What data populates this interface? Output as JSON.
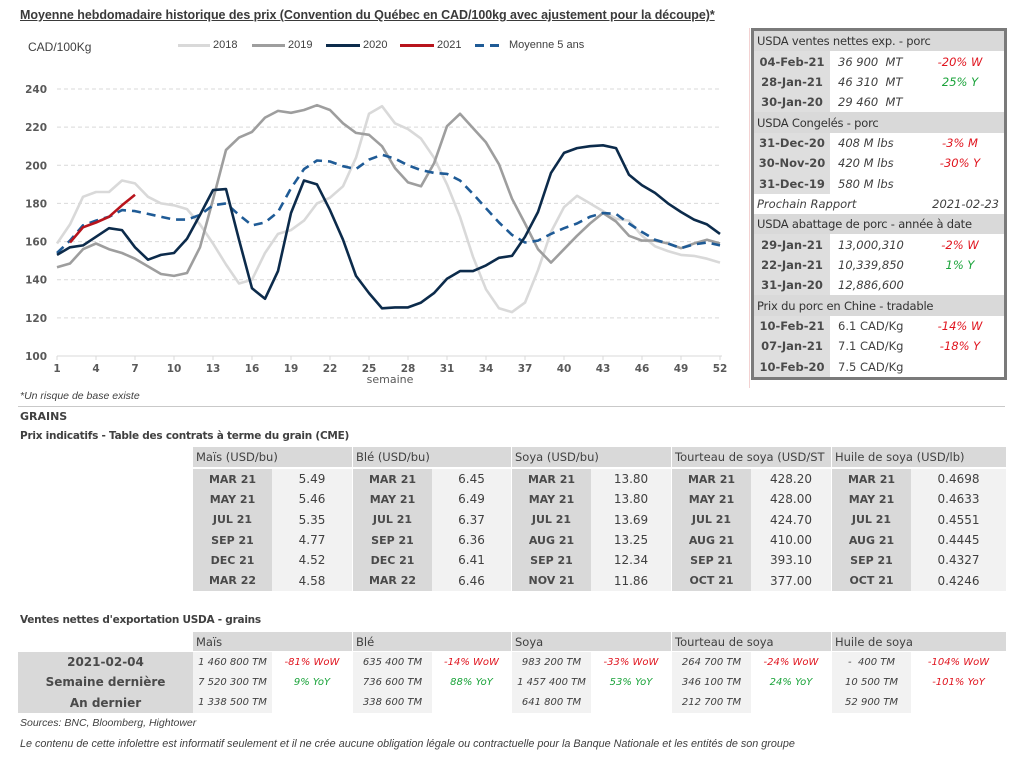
{
  "chart_data": {
    "type": "line",
    "title": "Moyenne hebdomadaire historique des prix (Convention du Québec en CAD/100kg avec ajustement pour la découpe)*",
    "ylabel": "CAD/100Kg",
    "xlabel": "semaine",
    "ylim": [
      100,
      240
    ],
    "xlim": [
      1,
      52
    ],
    "yticks": [
      100,
      120,
      140,
      160,
      180,
      200,
      220,
      240
    ],
    "xticks": [
      1,
      4,
      7,
      10,
      13,
      16,
      19,
      22,
      25,
      28,
      31,
      34,
      37,
      40,
      43,
      46,
      49,
      52
    ],
    "grid": "horizontal dashed",
    "legend": "top",
    "series": [
      {
        "name": "2018",
        "color": "#d9d9d9",
        "style": "solid",
        "x_start": 1,
        "values": [
          159,
          169,
          183.5,
          186,
          186,
          192,
          190.5,
          183.5,
          180,
          179,
          177,
          169,
          159,
          148,
          138,
          140,
          154,
          164,
          166,
          171,
          180,
          183,
          189,
          204,
          227,
          231,
          222,
          219,
          214,
          204,
          190,
          173,
          152,
          135,
          125,
          123,
          128,
          145,
          165,
          178,
          184,
          180,
          176,
          172,
          171,
          163,
          157.5,
          155,
          153,
          152.5,
          151,
          149
        ]
      },
      {
        "name": "2019",
        "color": "#9e9e9e",
        "style": "solid",
        "x_start": 1,
        "values": [
          146.5,
          148.5,
          156,
          159,
          156,
          154,
          151,
          147,
          143,
          142,
          143.5,
          157,
          182,
          208,
          214.5,
          217.5,
          225,
          228.5,
          227.5,
          229,
          231.5,
          229,
          222,
          217,
          216,
          210,
          198.5,
          191,
          189,
          201,
          220.5,
          227,
          219.5,
          212,
          200.5,
          182.5,
          169.5,
          156,
          149,
          156,
          163,
          169.5,
          175,
          170.5,
          163,
          160.5,
          160.5,
          159,
          156.5,
          159,
          161,
          159
        ]
      },
      {
        "name": "2020",
        "color": "#0c2b4b",
        "style": "solid",
        "x_start": 1,
        "values": [
          153,
          157,
          158,
          162.5,
          167,
          166,
          157,
          150.5,
          153,
          154,
          161.5,
          174,
          187,
          187.5,
          161,
          135.5,
          130,
          144.5,
          175,
          192,
          190,
          176.5,
          161,
          142,
          133,
          125,
          125.5,
          125.5,
          128,
          133,
          140.5,
          144.5,
          144.5,
          147.5,
          151.5,
          152.5,
          162.5,
          175.5,
          196,
          206.5,
          209,
          210,
          210.5,
          209,
          195,
          189.5,
          185.5,
          180,
          175.5,
          171.5,
          169,
          164
        ]
      },
      {
        "name": "2021",
        "color": "#b8141c",
        "style": "solid",
        "x_start": 2,
        "values": [
          159.5,
          167.5,
          170,
          173,
          179,
          184.5
        ]
      },
      {
        "name": "Moyenne 5 ans",
        "color": "#1f5b96",
        "style": "dashed",
        "x_start": 1,
        "values": [
          154,
          160.5,
          168.5,
          171,
          173,
          176.5,
          176,
          174.5,
          173,
          171.5,
          171.5,
          174,
          179,
          180,
          174,
          168.5,
          170,
          175.5,
          188,
          198,
          202.5,
          202,
          199.5,
          198,
          203,
          205.5,
          203.5,
          200,
          197.5,
          196,
          195.5,
          192,
          185,
          177.5,
          170,
          163.5,
          159.5,
          160.5,
          164,
          167,
          169.5,
          173,
          175,
          174.5,
          169.5,
          165,
          161,
          159,
          156.5,
          158.5,
          159.5,
          158
        ]
      }
    ]
  },
  "footnote": "*Un risque de base existe",
  "colors": {
    "negative": "#e0141e",
    "positive": "#1aa33a"
  },
  "pork_panel": {
    "sections": [
      {
        "title": "USDA ventes nettes exp. - porc",
        "rows": [
          {
            "date": "04-Feb-21",
            "value": "36 900  MT",
            "change": "-20% W"
          },
          {
            "date": "28-Jan-21",
            "value": "46 310  MT",
            "change": "25% Y"
          },
          {
            "date": "30-Jan-20",
            "value": "29 460  MT"
          }
        ]
      },
      {
        "title": "USDA Congelés - porc",
        "rows": [
          {
            "date": "31-Dec-20",
            "value": "408 M lbs",
            "change": "-3% M"
          },
          {
            "date": "30-Nov-20",
            "value": "420 M lbs",
            "change": "-30% Y"
          },
          {
            "date": "31-Dec-19",
            "value": "580 M lbs"
          }
        ],
        "next_report": {
          "label": "Prochain Rapport",
          "date": "2021-02-23"
        }
      },
      {
        "title": "USDA abattage de porc - année à date",
        "rows": [
          {
            "date": "29-Jan-21",
            "value": "13,000,310",
            "change": "-2% W"
          },
          {
            "date": "22-Jan-21",
            "value": "10,339,850",
            "change": "1% Y"
          },
          {
            "date": "31-Jan-20",
            "value": "12,886,600"
          }
        ]
      },
      {
        "title": "Prix du porc en Chine - tradable",
        "rows": [
          {
            "date": "10-Feb-21",
            "value": "6.1 CAD/Kg",
            "change": "-14% W"
          },
          {
            "date": "07-Jan-21",
            "value": "7.1 CAD/Kg",
            "change": "-18% Y"
          },
          {
            "date": "10-Feb-20",
            "value": "7.5 CAD/Kg"
          }
        ]
      }
    ]
  },
  "grains": {
    "section_title": "GRAINS",
    "futures": {
      "title": "Prix indicatifs - Table des contrats à terme du grain (CME)",
      "groups": [
        {
          "header": "Maïs (USD/bu)",
          "rows": [
            [
              "MAR 21",
              "5.49"
            ],
            [
              "MAY 21",
              "5.46"
            ],
            [
              "JUL 21",
              "5.35"
            ],
            [
              "SEP 21",
              "4.77"
            ],
            [
              "DEC 21",
              "4.52"
            ],
            [
              "MAR 22",
              "4.58"
            ]
          ]
        },
        {
          "header": "Blé (USD/bu)",
          "rows": [
            [
              "MAR 21",
              "6.45"
            ],
            [
              "MAY 21",
              "6.49"
            ],
            [
              "JUL 21",
              "6.37"
            ],
            [
              "SEP 21",
              "6.36"
            ],
            [
              "DEC 21",
              "6.41"
            ],
            [
              "MAR 22",
              "6.46"
            ]
          ]
        },
        {
          "header": "Soya (USD/bu)",
          "rows": [
            [
              "MAR 21",
              "13.80"
            ],
            [
              "MAY 21",
              "13.80"
            ],
            [
              "JUL 21",
              "13.69"
            ],
            [
              "AUG 21",
              "13.25"
            ],
            [
              "SEP 21",
              "12.34"
            ],
            [
              "NOV 21",
              "11.86"
            ]
          ]
        },
        {
          "header": "Tourteau de soya (USD/ST",
          "rows": [
            [
              "MAR 21",
              "428.20"
            ],
            [
              "MAY 21",
              "428.00"
            ],
            [
              "JUL 21",
              "424.70"
            ],
            [
              "AUG 21",
              "410.00"
            ],
            [
              "SEP 21",
              "393.10"
            ],
            [
              "OCT 21",
              "377.00"
            ]
          ]
        },
        {
          "header": "Huile de soya (USD/lb)",
          "rows": [
            [
              "MAR 21",
              "0.4698"
            ],
            [
              "MAY 21",
              "0.4633"
            ],
            [
              "JUL 21",
              "0.4551"
            ],
            [
              "AUG 21",
              "0.4445"
            ],
            [
              "SEP 21",
              "0.4327"
            ],
            [
              "OCT 21",
              "0.4246"
            ]
          ]
        }
      ]
    },
    "exports": {
      "title": "Ventes nettes d'exportation USDA - grains",
      "row_labels": [
        "2021-02-04",
        "Semaine dernière",
        "An dernier"
      ],
      "groups": [
        {
          "header": "Maïs",
          "values": [
            "1 460 800 TM",
            "7 520 300 TM",
            "1 338 500 TM"
          ],
          "changes": [
            "-81% WoW",
            "9% YoY"
          ]
        },
        {
          "header": "Blé",
          "values": [
            "635 400 TM",
            "736 600 TM",
            "338 600 TM"
          ],
          "changes": [
            "-14% WoW",
            "88% YoY"
          ]
        },
        {
          "header": "Soya",
          "values": [
            "983 200 TM",
            "1 457 400 TM",
            "641 800 TM"
          ],
          "changes": [
            "-33% WoW",
            "53% YoY"
          ]
        },
        {
          "header": "Tourteau de soya",
          "values": [
            "264 700 TM",
            "346 100 TM",
            "212 700 TM"
          ],
          "changes": [
            "-24% WoW",
            "24% YoY"
          ]
        },
        {
          "header": "Huile de soya",
          "values": [
            "-  400 TM",
            "10 500 TM",
            "52 900 TM"
          ],
          "changes": [
            "-104% WoW",
            "-101% YoY"
          ]
        }
      ]
    }
  },
  "sources": "Sources: BNC, Bloomberg, Hightower",
  "disclaimer": "Le contenu de cette infolettre est informatif seulement et il ne crée aucune obligation légale ou contractuelle pour la Banque Nationale et les entités de son groupe"
}
